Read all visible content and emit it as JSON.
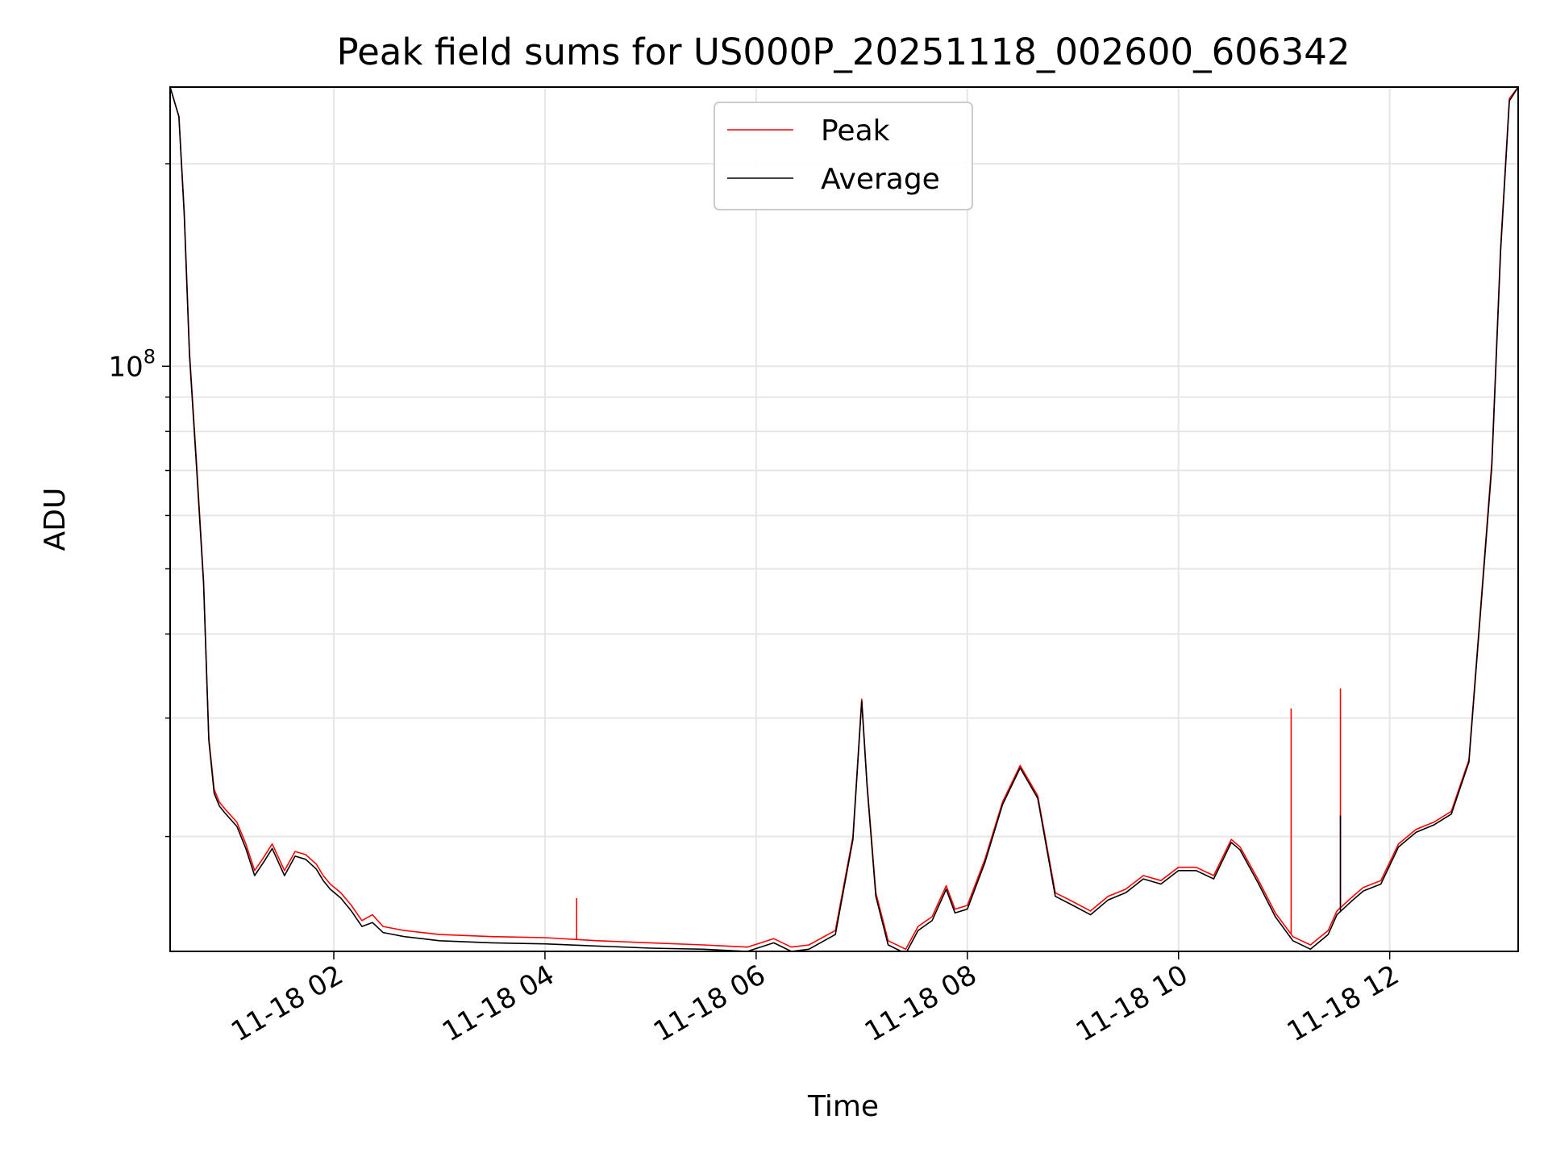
{
  "chart_data": {
    "type": "line",
    "title": "Peak field sums for US000P_20251118_002600_606342",
    "xlabel": "Time",
    "ylabel": "ADU",
    "y_scale": "log",
    "x_range": [
      "2025-11-18 00:27",
      "2025-11-18 13:13"
    ],
    "ylim": [
      13500000,
      260000000
    ],
    "x_ticks": [
      "11-18 02",
      "11-18 04",
      "11-18 06",
      "11-18 08",
      "11-18 10",
      "11-18 12"
    ],
    "y_tick_major": {
      "base": "10",
      "exponent": "8"
    },
    "grid": true,
    "legend_position": "upper center",
    "legend": [
      "Peak",
      "Average"
    ],
    "colors": {
      "Peak": "#ff0000",
      "Average": "#000000"
    },
    "series": [
      {
        "name": "Peak",
        "x": [
          "00:27",
          "00:32",
          "00:35",
          "00:38",
          "00:42",
          "00:46",
          "00:49",
          "00:52",
          "00:55",
          "00:58",
          "01:05",
          "01:10",
          "01:15",
          "01:20",
          "01:25",
          "01:32",
          "01:38",
          "01:44",
          "01:50",
          "01:54",
          "01:58",
          "02:04",
          "02:10",
          "02:16",
          "02:22",
          "02:28",
          "02:34",
          "02:40",
          "02:50",
          "03:00",
          "03:30",
          "04:00",
          "04:30",
          "05:00",
          "05:30",
          "05:55",
          "06:10",
          "06:20",
          "06:30",
          "06:45",
          "06:55",
          "07:00",
          "07:03",
          "07:08",
          "07:15",
          "07:25",
          "07:32",
          "07:40",
          "07:48",
          "07:53",
          "08:00",
          "08:10",
          "08:20",
          "08:30",
          "08:40",
          "08:50",
          "09:00",
          "09:10",
          "09:20",
          "09:30",
          "09:40",
          "09:50",
          "10:00",
          "10:10",
          "10:20",
          "10:30",
          "10:35",
          "10:45",
          "10:55",
          "11:05",
          "11:15",
          "11:25",
          "11:30",
          "11:38",
          "11:45",
          "11:55",
          "12:05",
          "12:15",
          "12:25",
          "12:35",
          "12:45",
          "12:52",
          "12:58",
          "13:03",
          "13:08",
          "13:13"
        ],
        "values": [
          260000000,
          235000000,
          170000000,
          105000000,
          72000000,
          48000000,
          28000000,
          23500000,
          22500000,
          22000000,
          21000000,
          19500000,
          17800000,
          18600000,
          19500000,
          17800000,
          19000000,
          18800000,
          18200000,
          17500000,
          17000000,
          16500000,
          15800000,
          15000000,
          15300000,
          14700000,
          14600000,
          14500000,
          14400000,
          14300000,
          14200000,
          14150000,
          14000000,
          13900000,
          13800000,
          13700000,
          14100000,
          13700000,
          13800000,
          14500000,
          20000000,
          32000000,
          24000000,
          16500000,
          14000000,
          13600000,
          14700000,
          15200000,
          16900000,
          15600000,
          15800000,
          18500000,
          22500000,
          25500000,
          23000000,
          16500000,
          16000000,
          15500000,
          16300000,
          16700000,
          17500000,
          17200000,
          18000000,
          18000000,
          17500000,
          19800000,
          19300000,
          17300000,
          15400000,
          14200000,
          13800000,
          14500000,
          15500000,
          16200000,
          16800000,
          17200000,
          19500000,
          20500000,
          21000000,
          21800000,
          26000000,
          45000000,
          72000000,
          150000000,
          250000000,
          260000000
        ]
      },
      {
        "name": "Average",
        "x": [
          "00:27",
          "00:32",
          "00:35",
          "00:38",
          "00:42",
          "00:46",
          "00:49",
          "00:52",
          "00:55",
          "00:58",
          "01:05",
          "01:10",
          "01:15",
          "01:20",
          "01:25",
          "01:32",
          "01:38",
          "01:44",
          "01:50",
          "01:54",
          "01:58",
          "02:04",
          "02:10",
          "02:16",
          "02:22",
          "02:28",
          "02:34",
          "02:40",
          "02:50",
          "03:00",
          "03:30",
          "04:00",
          "04:30",
          "05:00",
          "05:30",
          "05:55",
          "06:10",
          "06:20",
          "06:30",
          "06:45",
          "06:55",
          "07:00",
          "07:03",
          "07:08",
          "07:15",
          "07:25",
          "07:32",
          "07:40",
          "07:48",
          "07:53",
          "08:00",
          "08:10",
          "08:20",
          "08:30",
          "08:40",
          "08:50",
          "09:00",
          "09:10",
          "09:20",
          "09:30",
          "09:40",
          "09:50",
          "10:00",
          "10:10",
          "10:20",
          "10:30",
          "10:35",
          "10:45",
          "10:55",
          "11:05",
          "11:15",
          "11:25",
          "11:30",
          "11:38",
          "11:45",
          "11:55",
          "12:05",
          "12:15",
          "12:25",
          "12:35",
          "12:45",
          "12:52",
          "12:58",
          "13:03",
          "13:08",
          "13:13"
        ],
        "values": [
          260000000,
          235000000,
          168000000,
          104000000,
          71000000,
          47500000,
          27800000,
          23200000,
          22200000,
          21700000,
          20700000,
          19200000,
          17500000,
          18300000,
          19200000,
          17500000,
          18700000,
          18500000,
          17900000,
          17200000,
          16700000,
          16200000,
          15500000,
          14700000,
          14900000,
          14400000,
          14300000,
          14200000,
          14100000,
          14000000,
          13900000,
          13850000,
          13750000,
          13650000,
          13600000,
          13500000,
          13900000,
          13500000,
          13600000,
          14300000,
          19800000,
          31800000,
          23800000,
          16300000,
          13800000,
          13400000,
          14500000,
          15000000,
          16700000,
          15400000,
          15600000,
          18300000,
          22300000,
          25300000,
          22800000,
          16300000,
          15800000,
          15300000,
          16100000,
          16500000,
          17300000,
          17000000,
          17800000,
          17800000,
          17300000,
          19600000,
          19100000,
          17100000,
          15200000,
          14000000,
          13600000,
          14300000,
          15300000,
          16000000,
          16600000,
          17000000,
          19300000,
          20300000,
          20800000,
          21600000,
          25800000,
          44500000,
          71000000,
          148000000,
          248000000,
          260000000
        ]
      }
    ],
    "spikes": [
      {
        "series": "Peak",
        "x": "04:18",
        "value": 16200000
      },
      {
        "series": "Peak",
        "x": "11:04",
        "value": 31000000
      },
      {
        "series": "Peak",
        "x": "11:32",
        "value": 33200000
      },
      {
        "series": "Average",
        "x": "11:32",
        "value": 21500000
      }
    ]
  }
}
